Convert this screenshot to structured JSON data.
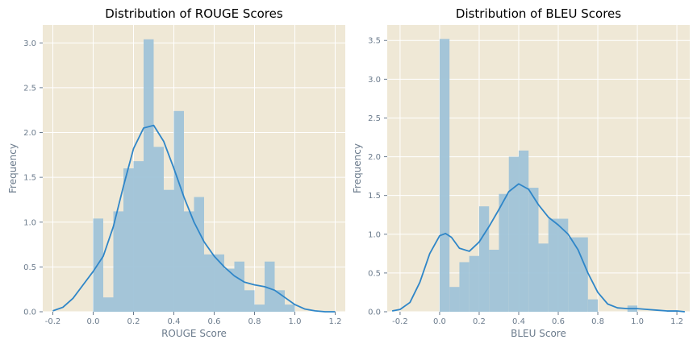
{
  "chart_data": [
    {
      "type": "histogram",
      "title": "Distribution of ROUGE Scores",
      "xlabel": "ROUGE Score",
      "ylabel": "Frequency",
      "xlim": [
        -0.25,
        1.25
      ],
      "ylim": [
        0,
        3.2
      ],
      "xticks": [
        -0.2,
        0.0,
        0.2,
        0.4,
        0.6,
        0.8,
        1.0,
        1.2
      ],
      "yticks": [
        0.0,
        0.5,
        1.0,
        1.5,
        2.0,
        2.5,
        3.0
      ],
      "grid": true,
      "bar_color": "#9fc3d8",
      "line_color": "#2f86c8",
      "bin_edges": [
        0.0,
        0.05,
        0.1,
        0.15,
        0.2,
        0.25,
        0.3,
        0.35,
        0.4,
        0.45,
        0.5,
        0.55,
        0.6,
        0.65,
        0.7,
        0.75,
        0.8,
        0.85,
        0.9,
        0.95,
        1.0
      ],
      "values": [
        1.04,
        0.16,
        1.12,
        1.6,
        1.68,
        3.04,
        1.84,
        1.36,
        2.24,
        1.12,
        1.28,
        0.64,
        0.64,
        0.48,
        0.56,
        0.24,
        0.08,
        0.56,
        0.24,
        0.08
      ],
      "kde": {
        "x": [
          -0.2,
          -0.15,
          -0.1,
          -0.05,
          0.0,
          0.05,
          0.1,
          0.15,
          0.2,
          0.25,
          0.3,
          0.35,
          0.4,
          0.45,
          0.5,
          0.55,
          0.6,
          0.65,
          0.7,
          0.75,
          0.8,
          0.85,
          0.9,
          0.95,
          1.0,
          1.05,
          1.1,
          1.15,
          1.2
        ],
        "y": [
          0.01,
          0.05,
          0.15,
          0.3,
          0.45,
          0.62,
          0.95,
          1.4,
          1.82,
          2.05,
          2.08,
          1.9,
          1.6,
          1.28,
          1.0,
          0.78,
          0.62,
          0.5,
          0.4,
          0.33,
          0.3,
          0.28,
          0.24,
          0.16,
          0.08,
          0.03,
          0.01,
          0.0,
          0.0
        ]
      }
    },
    {
      "type": "histogram",
      "title": "Distribution of BLEU Scores",
      "xlabel": "BLEU Score",
      "ylabel": "Frequency",
      "xlim": [
        -0.265,
        1.265
      ],
      "ylim": [
        0,
        3.7
      ],
      "xticks": [
        -0.2,
        0.0,
        0.2,
        0.4,
        0.6,
        0.8,
        1.0,
        1.2
      ],
      "yticks": [
        0.0,
        0.5,
        1.0,
        1.5,
        2.0,
        2.5,
        3.0,
        3.5
      ],
      "grid": true,
      "bar_color": "#9fc3d8",
      "line_color": "#2f86c8",
      "bin_edges": [
        0.0,
        0.05,
        0.1,
        0.15,
        0.2,
        0.25,
        0.3,
        0.35,
        0.4,
        0.45,
        0.5,
        0.55,
        0.6,
        0.65,
        0.7,
        0.75,
        0.8,
        0.85,
        0.9,
        0.95,
        1.0
      ],
      "values": [
        3.52,
        0.32,
        0.64,
        0.72,
        1.36,
        0.8,
        1.52,
        2.0,
        2.08,
        1.6,
        0.88,
        1.2,
        1.2,
        0.96,
        0.96,
        0.16,
        0.0,
        0.0,
        0.0,
        0.08
      ],
      "kde": {
        "x": [
          -0.24,
          -0.2,
          -0.15,
          -0.1,
          -0.05,
          0.0,
          0.03,
          0.06,
          0.1,
          0.15,
          0.2,
          0.25,
          0.3,
          0.35,
          0.4,
          0.45,
          0.5,
          0.55,
          0.6,
          0.65,
          0.7,
          0.75,
          0.8,
          0.85,
          0.9,
          0.95,
          1.0,
          1.05,
          1.1,
          1.15,
          1.2,
          1.24
        ],
        "y": [
          0.01,
          0.03,
          0.12,
          0.38,
          0.75,
          0.98,
          1.01,
          0.96,
          0.82,
          0.78,
          0.9,
          1.1,
          1.32,
          1.55,
          1.65,
          1.58,
          1.38,
          1.22,
          1.12,
          1.0,
          0.8,
          0.5,
          0.25,
          0.1,
          0.05,
          0.04,
          0.04,
          0.03,
          0.02,
          0.01,
          0.01,
          0.0
        ]
      }
    }
  ]
}
